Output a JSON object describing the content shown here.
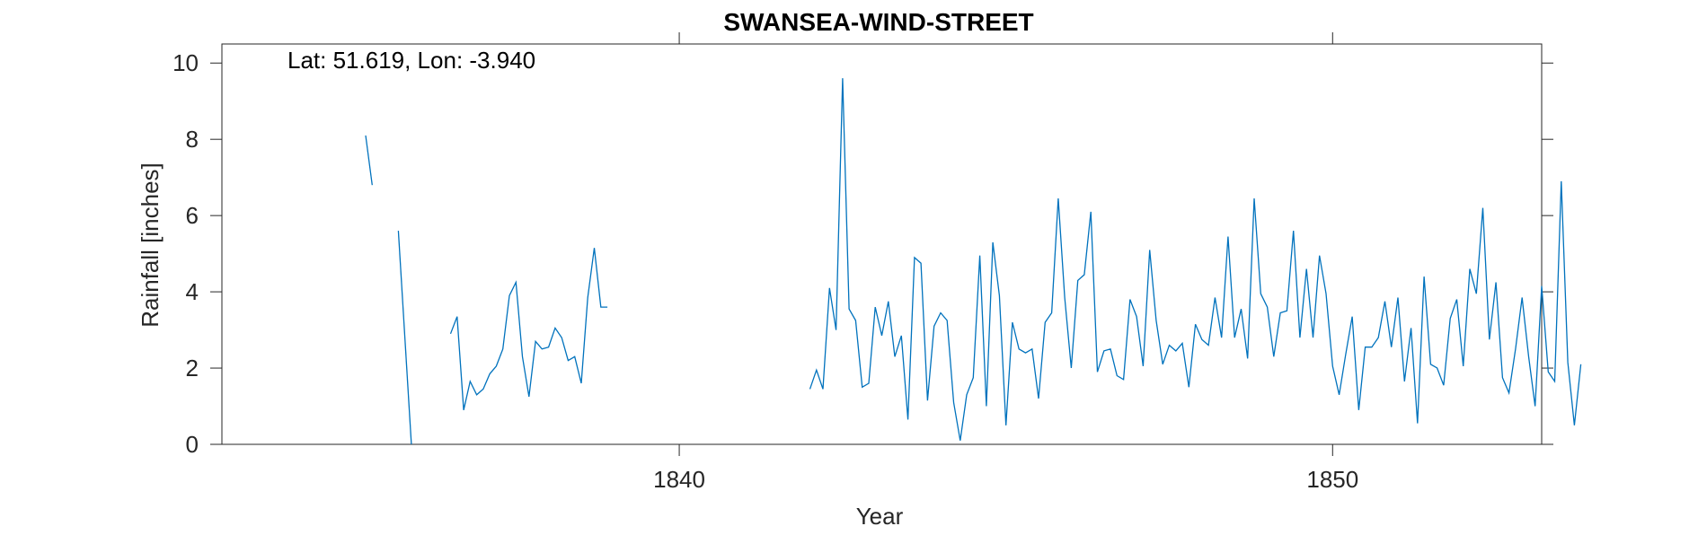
{
  "chart_data": {
    "type": "line",
    "title": "SWANSEA-WIND-STREET",
    "annotation": "Lat: 51.619, Lon: -3.940",
    "xlabel": "Year",
    "ylabel": "Rainfall [inches]",
    "xlim": [
      1833.0,
      1853.2
    ],
    "ylim": [
      0,
      10.5
    ],
    "xticks": [
      1840,
      1850
    ],
    "yticks": [
      0,
      2,
      4,
      6,
      8,
      10
    ],
    "grid": false,
    "legend": "none",
    "line_color": "#0072BD",
    "series": [
      {
        "segments": [
          [
            [
              1835.2,
              8.1
            ],
            [
              1835.3,
              6.8
            ]
          ],
          [
            [
              1835.7,
              5.6
            ],
            [
              1835.9,
              0.0
            ]
          ],
          [
            [
              1836.5,
              2.9
            ],
            [
              1836.6,
              3.35
            ],
            [
              1836.7,
              0.9
            ],
            [
              1836.8,
              1.65
            ],
            [
              1836.9,
              1.3
            ],
            [
              1837.0,
              1.45
            ],
            [
              1837.1,
              1.85
            ],
            [
              1837.2,
              2.05
            ],
            [
              1837.3,
              2.5
            ],
            [
              1837.4,
              3.9
            ],
            [
              1837.5,
              4.25
            ],
            [
              1837.6,
              2.3
            ],
            [
              1837.7,
              1.25
            ],
            [
              1837.8,
              2.7
            ],
            [
              1837.9,
              2.5
            ],
            [
              1838.0,
              2.55
            ],
            [
              1838.1,
              3.05
            ],
            [
              1838.2,
              2.8
            ],
            [
              1838.3,
              2.2
            ],
            [
              1838.4,
              2.3
            ],
            [
              1838.5,
              1.6
            ],
            [
              1838.6,
              3.85
            ],
            [
              1838.7,
              5.15
            ],
            [
              1838.8,
              3.6
            ],
            [
              1838.9,
              3.6
            ]
          ],
          [
            [
              1842.0,
              1.45
            ],
            [
              1842.1,
              1.95
            ],
            [
              1842.2,
              1.45
            ],
            [
              1842.3,
              4.1
            ],
            [
              1842.4,
              3.0
            ],
            [
              1842.5,
              9.6
            ],
            [
              1842.6,
              3.55
            ],
            [
              1842.7,
              3.25
            ],
            [
              1842.8,
              1.5
            ],
            [
              1842.9,
              1.6
            ],
            [
              1843.0,
              3.6
            ],
            [
              1843.1,
              2.85
            ],
            [
              1843.2,
              3.75
            ],
            [
              1843.3,
              2.3
            ],
            [
              1843.4,
              2.85
            ],
            [
              1843.5,
              0.65
            ],
            [
              1843.6,
              4.9
            ],
            [
              1843.7,
              4.75
            ],
            [
              1843.8,
              1.15
            ],
            [
              1843.9,
              3.1
            ],
            [
              1844.0,
              3.45
            ],
            [
              1844.1,
              3.25
            ],
            [
              1844.2,
              1.1
            ],
            [
              1844.3,
              0.1
            ],
            [
              1844.4,
              1.3
            ],
            [
              1844.5,
              1.75
            ],
            [
              1844.6,
              4.95
            ],
            [
              1844.7,
              1.0
            ],
            [
              1844.8,
              5.3
            ],
            [
              1844.9,
              3.9
            ],
            [
              1845.0,
              0.5
            ],
            [
              1845.1,
              3.2
            ],
            [
              1845.2,
              2.5
            ],
            [
              1845.3,
              2.4
            ],
            [
              1845.4,
              2.5
            ],
            [
              1845.5,
              1.2
            ],
            [
              1845.6,
              3.2
            ],
            [
              1845.7,
              3.45
            ],
            [
              1845.8,
              6.45
            ],
            [
              1845.9,
              3.85
            ],
            [
              1846.0,
              2.0
            ],
            [
              1846.1,
              4.3
            ],
            [
              1846.2,
              4.45
            ],
            [
              1846.3,
              6.1
            ],
            [
              1846.4,
              1.9
            ],
            [
              1846.5,
              2.45
            ],
            [
              1846.6,
              2.5
            ],
            [
              1846.7,
              1.8
            ],
            [
              1846.8,
              1.7
            ],
            [
              1846.9,
              3.8
            ],
            [
              1847.0,
              3.35
            ],
            [
              1847.1,
              2.05
            ],
            [
              1847.2,
              5.1
            ],
            [
              1847.3,
              3.25
            ],
            [
              1847.4,
              2.1
            ],
            [
              1847.5,
              2.6
            ],
            [
              1847.6,
              2.45
            ],
            [
              1847.7,
              2.65
            ],
            [
              1847.8,
              1.5
            ],
            [
              1847.9,
              3.15
            ],
            [
              1848.0,
              2.75
            ],
            [
              1848.1,
              2.6
            ],
            [
              1848.2,
              3.85
            ],
            [
              1848.3,
              2.8
            ],
            [
              1848.4,
              5.45
            ],
            [
              1848.5,
              2.8
            ],
            [
              1848.6,
              3.55
            ],
            [
              1848.7,
              2.25
            ],
            [
              1848.8,
              6.45
            ],
            [
              1848.9,
              3.95
            ],
            [
              1849.0,
              3.6
            ],
            [
              1849.1,
              2.3
            ],
            [
              1849.2,
              3.45
            ],
            [
              1849.3,
              3.5
            ],
            [
              1849.4,
              5.6
            ],
            [
              1849.5,
              2.8
            ],
            [
              1849.6,
              4.6
            ],
            [
              1849.7,
              2.8
            ],
            [
              1849.8,
              4.95
            ],
            [
              1849.9,
              3.95
            ],
            [
              1850.0,
              2.05
            ],
            [
              1850.1,
              1.3
            ],
            [
              1850.2,
              2.35
            ],
            [
              1850.3,
              3.35
            ],
            [
              1850.4,
              0.9
            ],
            [
              1850.5,
              2.55
            ],
            [
              1850.6,
              2.55
            ],
            [
              1850.7,
              2.8
            ],
            [
              1850.8,
              3.75
            ],
            [
              1850.9,
              2.55
            ],
            [
              1851.0,
              3.85
            ],
            [
              1851.1,
              1.65
            ],
            [
              1851.2,
              3.05
            ],
            [
              1851.3,
              0.55
            ],
            [
              1851.4,
              4.4
            ],
            [
              1851.5,
              2.1
            ],
            [
              1851.6,
              2.0
            ],
            [
              1851.7,
              1.55
            ],
            [
              1851.8,
              3.3
            ],
            [
              1851.9,
              3.8
            ],
            [
              1852.0,
              2.05
            ],
            [
              1852.1,
              4.6
            ],
            [
              1852.2,
              3.95
            ],
            [
              1852.3,
              6.2
            ],
            [
              1852.4,
              2.75
            ],
            [
              1852.5,
              4.25
            ],
            [
              1852.6,
              1.75
            ],
            [
              1852.7,
              1.35
            ],
            [
              1852.8,
              2.5
            ],
            [
              1852.9,
              3.85
            ],
            [
              1853.0,
              2.3
            ],
            [
              1853.1,
              1.0
            ],
            [
              1853.2,
              4.15
            ],
            [
              1853.3,
              1.9
            ],
            [
              1853.4,
              1.65
            ],
            [
              1853.5,
              6.9
            ],
            [
              1853.6,
              2.15
            ],
            [
              1853.7,
              0.5
            ],
            [
              1853.8,
              2.1
            ]
          ]
        ]
      }
    ]
  }
}
